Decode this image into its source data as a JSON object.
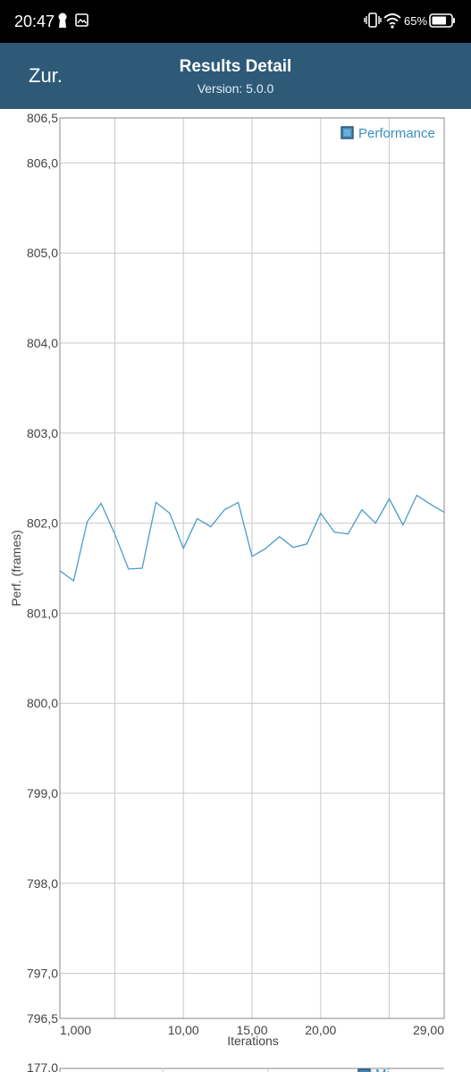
{
  "status_bar": {
    "time": "20:47",
    "battery": "65%",
    "icons": [
      "keyhole-icon",
      "gallery-icon",
      "vibrate-icon",
      "wifi-icon",
      "battery-icon"
    ]
  },
  "app_bar": {
    "back_label": "Zur.",
    "title": "Results Detail",
    "subtitle": "Version: 5.0.0"
  },
  "chart_data": [
    {
      "type": "line",
      "legend": [
        "Performance"
      ],
      "legend_position": "top-right",
      "xlabel": "Iterations",
      "ylabel": "Perf. (frames)",
      "x_ticks": [
        "1,000",
        "10,00",
        "15,00",
        "20,00",
        "29,00"
      ],
      "x_tick_values": [
        1,
        10,
        15,
        20,
        29
      ],
      "y_ticks": [
        "806,5",
        "806,0",
        "805,0",
        "804,0",
        "803,0",
        "802,0",
        "801,0",
        "800,0",
        "799,0",
        "798,0",
        "797,0",
        "796,5"
      ],
      "y_tick_values": [
        806.5,
        806,
        805,
        804,
        803,
        802,
        801,
        800,
        799,
        798,
        797,
        796.5
      ],
      "xlim": [
        1,
        29
      ],
      "ylim": [
        796.5,
        806.5
      ],
      "grid": true,
      "color": "#4a9cc8",
      "series": [
        {
          "name": "Performance",
          "x": [
            1,
            2,
            3,
            4,
            5,
            6,
            7,
            8,
            9,
            10,
            11,
            12,
            13,
            14,
            15,
            16,
            17,
            18,
            19,
            20,
            21,
            22,
            23,
            24,
            25,
            26,
            27,
            28,
            29
          ],
          "values": [
            801.47,
            801.36,
            802.02,
            802.22,
            801.88,
            801.49,
            801.5,
            802.23,
            802.11,
            801.72,
            802.05,
            801.96,
            802.15,
            802.23,
            801.63,
            801.72,
            801.85,
            801.73,
            801.77,
            802.11,
            801.9,
            801.88,
            802.15,
            802.0,
            802.27,
            801.98,
            802.31,
            802.21,
            802.12
          ]
        }
      ]
    },
    {
      "type": "line",
      "legend": [
        "Mi..."
      ],
      "y_ticks": [
        "177,0"
      ]
    }
  ]
}
